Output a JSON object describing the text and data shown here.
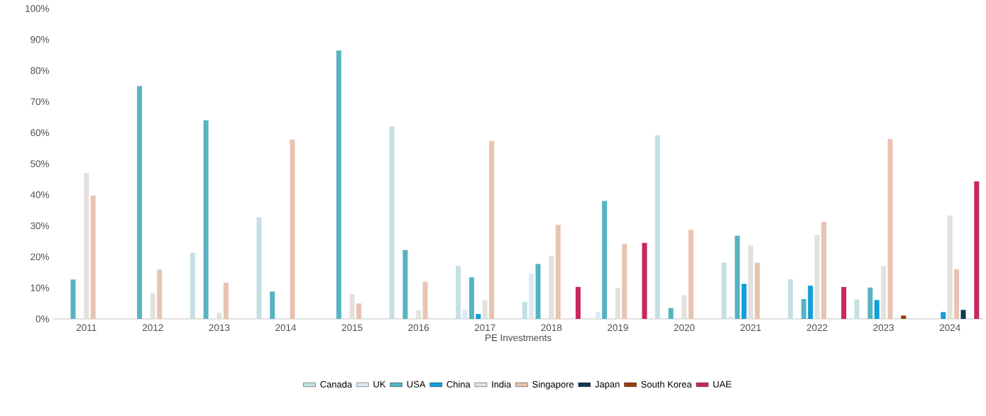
{
  "chart_data": {
    "type": "bar",
    "xlabel": "PE Investments",
    "categories": [
      "2011",
      "2012",
      "2013",
      "2014",
      "2015",
      "2016",
      "2017",
      "2018",
      "2019",
      "2020",
      "2021",
      "2022",
      "2023",
      "2024"
    ],
    "series": [
      {
        "name": "Canada",
        "color": "#c5e0e1",
        "values": [
          null,
          null,
          21.3,
          32.7,
          null,
          62,
          17,
          5.5,
          null,
          59.2,
          18.2,
          12.8,
          6.3,
          null
        ]
      },
      {
        "name": "UK",
        "color": "#dce9f7",
        "values": [
          null,
          null,
          null,
          null,
          null,
          null,
          3,
          14.7,
          2.2,
          null,
          0.7,
          null,
          null,
          null
        ]
      },
      {
        "name": "USA",
        "color": "#55b3c2",
        "values": [
          12.7,
          75,
          64,
          8.8,
          86.5,
          22.2,
          13.4,
          17.7,
          38,
          3.5,
          26.8,
          6.4,
          10.1,
          null
        ]
      },
      {
        "name": "China",
        "color": "#109fd8",
        "values": [
          null,
          null,
          null,
          null,
          null,
          null,
          1.6,
          null,
          null,
          null,
          11.3,
          10.7,
          6.1,
          2.2
        ]
      },
      {
        "name": "India",
        "color": "#e4e0db",
        "values": [
          47,
          8.3,
          2,
          null,
          8,
          2.7,
          6,
          20.3,
          10,
          7.6,
          23.7,
          27,
          17.1,
          33.3
        ]
      },
      {
        "name": "Singapore",
        "color": "#e8c3b2",
        "values": [
          39.7,
          15.9,
          11.7,
          57.8,
          5,
          12,
          57.3,
          30.3,
          24.2,
          28.7,
          18.1,
          31.3,
          58,
          16
        ]
      },
      {
        "name": "Japan",
        "color": "#0f3a4f",
        "values": [
          null,
          null,
          null,
          null,
          null,
          null,
          null,
          null,
          null,
          null,
          null,
          null,
          null,
          2.9
        ]
      },
      {
        "name": "South Korea",
        "color": "#9a3c0f",
        "values": [
          null,
          null,
          null,
          null,
          null,
          null,
          null,
          null,
          null,
          null,
          null,
          null,
          1.1,
          null
        ]
      },
      {
        "name": "UAE",
        "color": "#c8285f",
        "values": [
          null,
          null,
          null,
          null,
          null,
          null,
          null,
          10.3,
          24.5,
          null,
          null,
          10.3,
          null,
          44.3
        ]
      }
    ],
    "ylim": [
      0,
      100
    ],
    "yticks": [
      {
        "value": 0,
        "label": "0%"
      },
      {
        "value": 10,
        "label": "10%"
      },
      {
        "value": 20,
        "label": "20%"
      },
      {
        "value": 30,
        "label": "30%"
      },
      {
        "value": 40,
        "label": "40%"
      },
      {
        "value": 50,
        "label": "50%"
      },
      {
        "value": 60,
        "label": "60%"
      },
      {
        "value": 70,
        "label": "70%"
      },
      {
        "value": 80,
        "label": "80%"
      },
      {
        "value": 90,
        "label": "90%"
      },
      {
        "value": 100,
        "label": "100%"
      }
    ],
    "legend": "bottom",
    "grid": false
  }
}
